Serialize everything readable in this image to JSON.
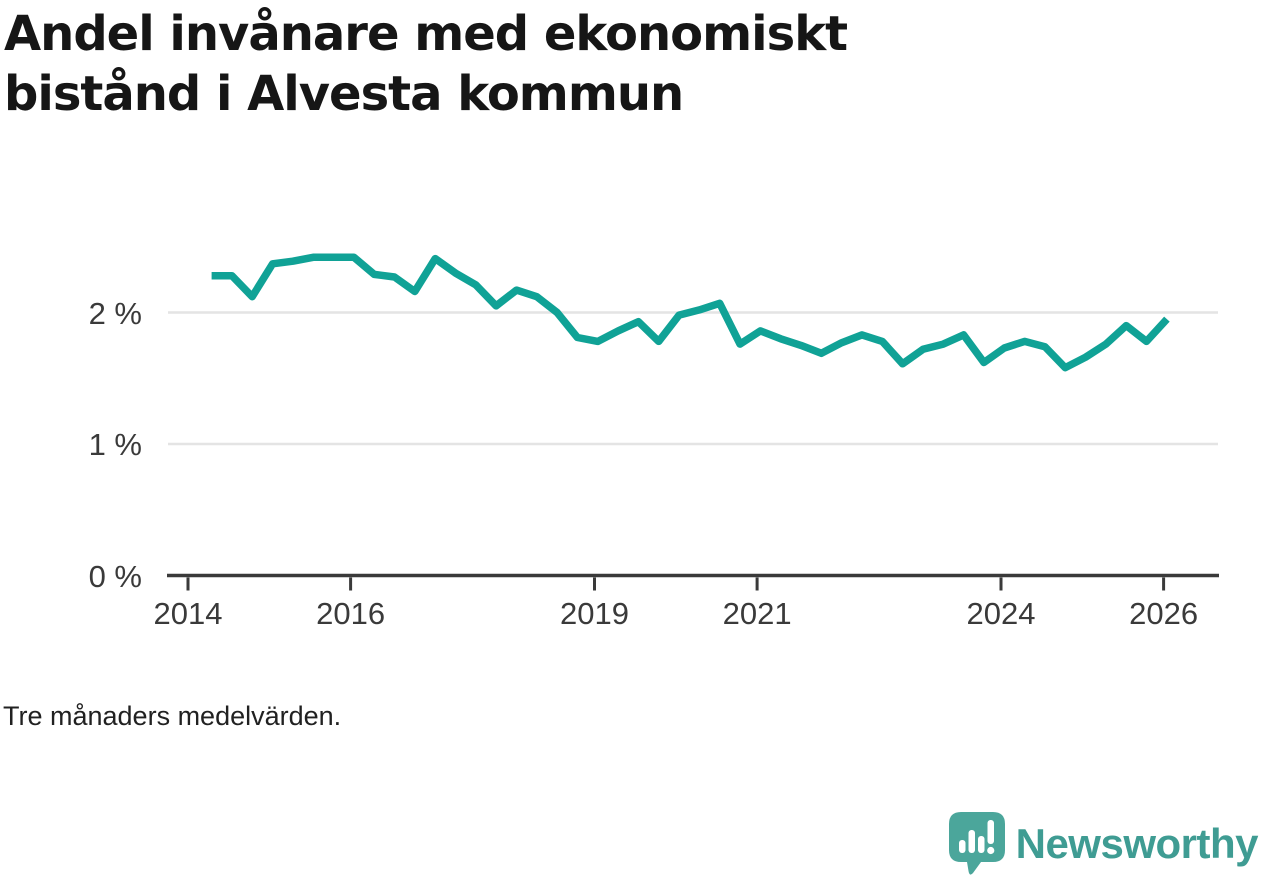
{
  "header": {
    "title_lines": [
      "Andel invånare med ekonomiskt",
      "bistånd i Alvesta kommun"
    ]
  },
  "chart_data": {
    "type": "line",
    "title": "Andel invånare med ekonomiskt bistånd i Alvesta kommun",
    "ylabel": "",
    "xlabel": "",
    "unit": "%",
    "grid": "horizontal",
    "legend_position": "none",
    "xlim": [
      2013.75,
      2026.45
    ],
    "ylim": [
      0,
      2.75
    ],
    "x_ticks": [
      2014,
      2016,
      2019,
      2021,
      2024,
      2026
    ],
    "x_tick_labels": [
      "2014",
      "2016",
      "2019",
      "2021",
      "2024",
      "2026"
    ],
    "y_ticks": [
      0,
      1,
      2
    ],
    "y_tick_labels": [
      "0 %",
      "1 %",
      "2 %"
    ],
    "series": [
      {
        "name": "Andel invånare med ekonomiskt bistånd",
        "color": "#10a296",
        "x": [
          2014.29,
          2014.54,
          2014.79,
          2015.04,
          2015.29,
          2015.54,
          2015.79,
          2016.04,
          2016.29,
          2016.54,
          2016.79,
          2017.04,
          2017.29,
          2017.54,
          2017.79,
          2018.04,
          2018.29,
          2018.54,
          2018.79,
          2019.04,
          2019.29,
          2019.54,
          2019.79,
          2020.04,
          2020.29,
          2020.54,
          2020.79,
          2021.04,
          2021.29,
          2021.54,
          2021.79,
          2022.04,
          2022.29,
          2022.54,
          2022.79,
          2023.04,
          2023.29,
          2023.54,
          2023.79,
          2024.04,
          2024.29,
          2024.54,
          2024.79,
          2025.04,
          2025.29,
          2025.54,
          2025.79,
          2026.04
        ],
        "values": [
          2.28,
          2.28,
          2.12,
          2.37,
          2.39,
          2.42,
          2.42,
          2.42,
          2.29,
          2.27,
          2.16,
          2.41,
          2.3,
          2.21,
          2.05,
          2.17,
          2.12,
          2.0,
          1.81,
          1.78,
          1.86,
          1.93,
          1.78,
          1.98,
          2.02,
          2.07,
          1.76,
          1.86,
          1.8,
          1.75,
          1.69,
          1.77,
          1.83,
          1.78,
          1.61,
          1.72,
          1.76,
          1.83,
          1.62,
          1.73,
          1.78,
          1.74,
          1.58,
          1.66,
          1.76,
          1.9,
          1.78,
          1.95
        ]
      }
    ]
  },
  "footnote": "Tre månaders medelvärden.",
  "logo": {
    "text": "Newsworthy",
    "icon": "newsworthy-speech-bubble-bar-chart-icon",
    "text_color": "#3f9c93",
    "icon_color": "#4ba69b"
  },
  "colors": {
    "line": "#10a296",
    "grid": "#e4e4e4",
    "axis": "#3a3a3a",
    "tick_text": "#3a3a3a",
    "title_text": "#161616",
    "background": "#ffffff"
  }
}
